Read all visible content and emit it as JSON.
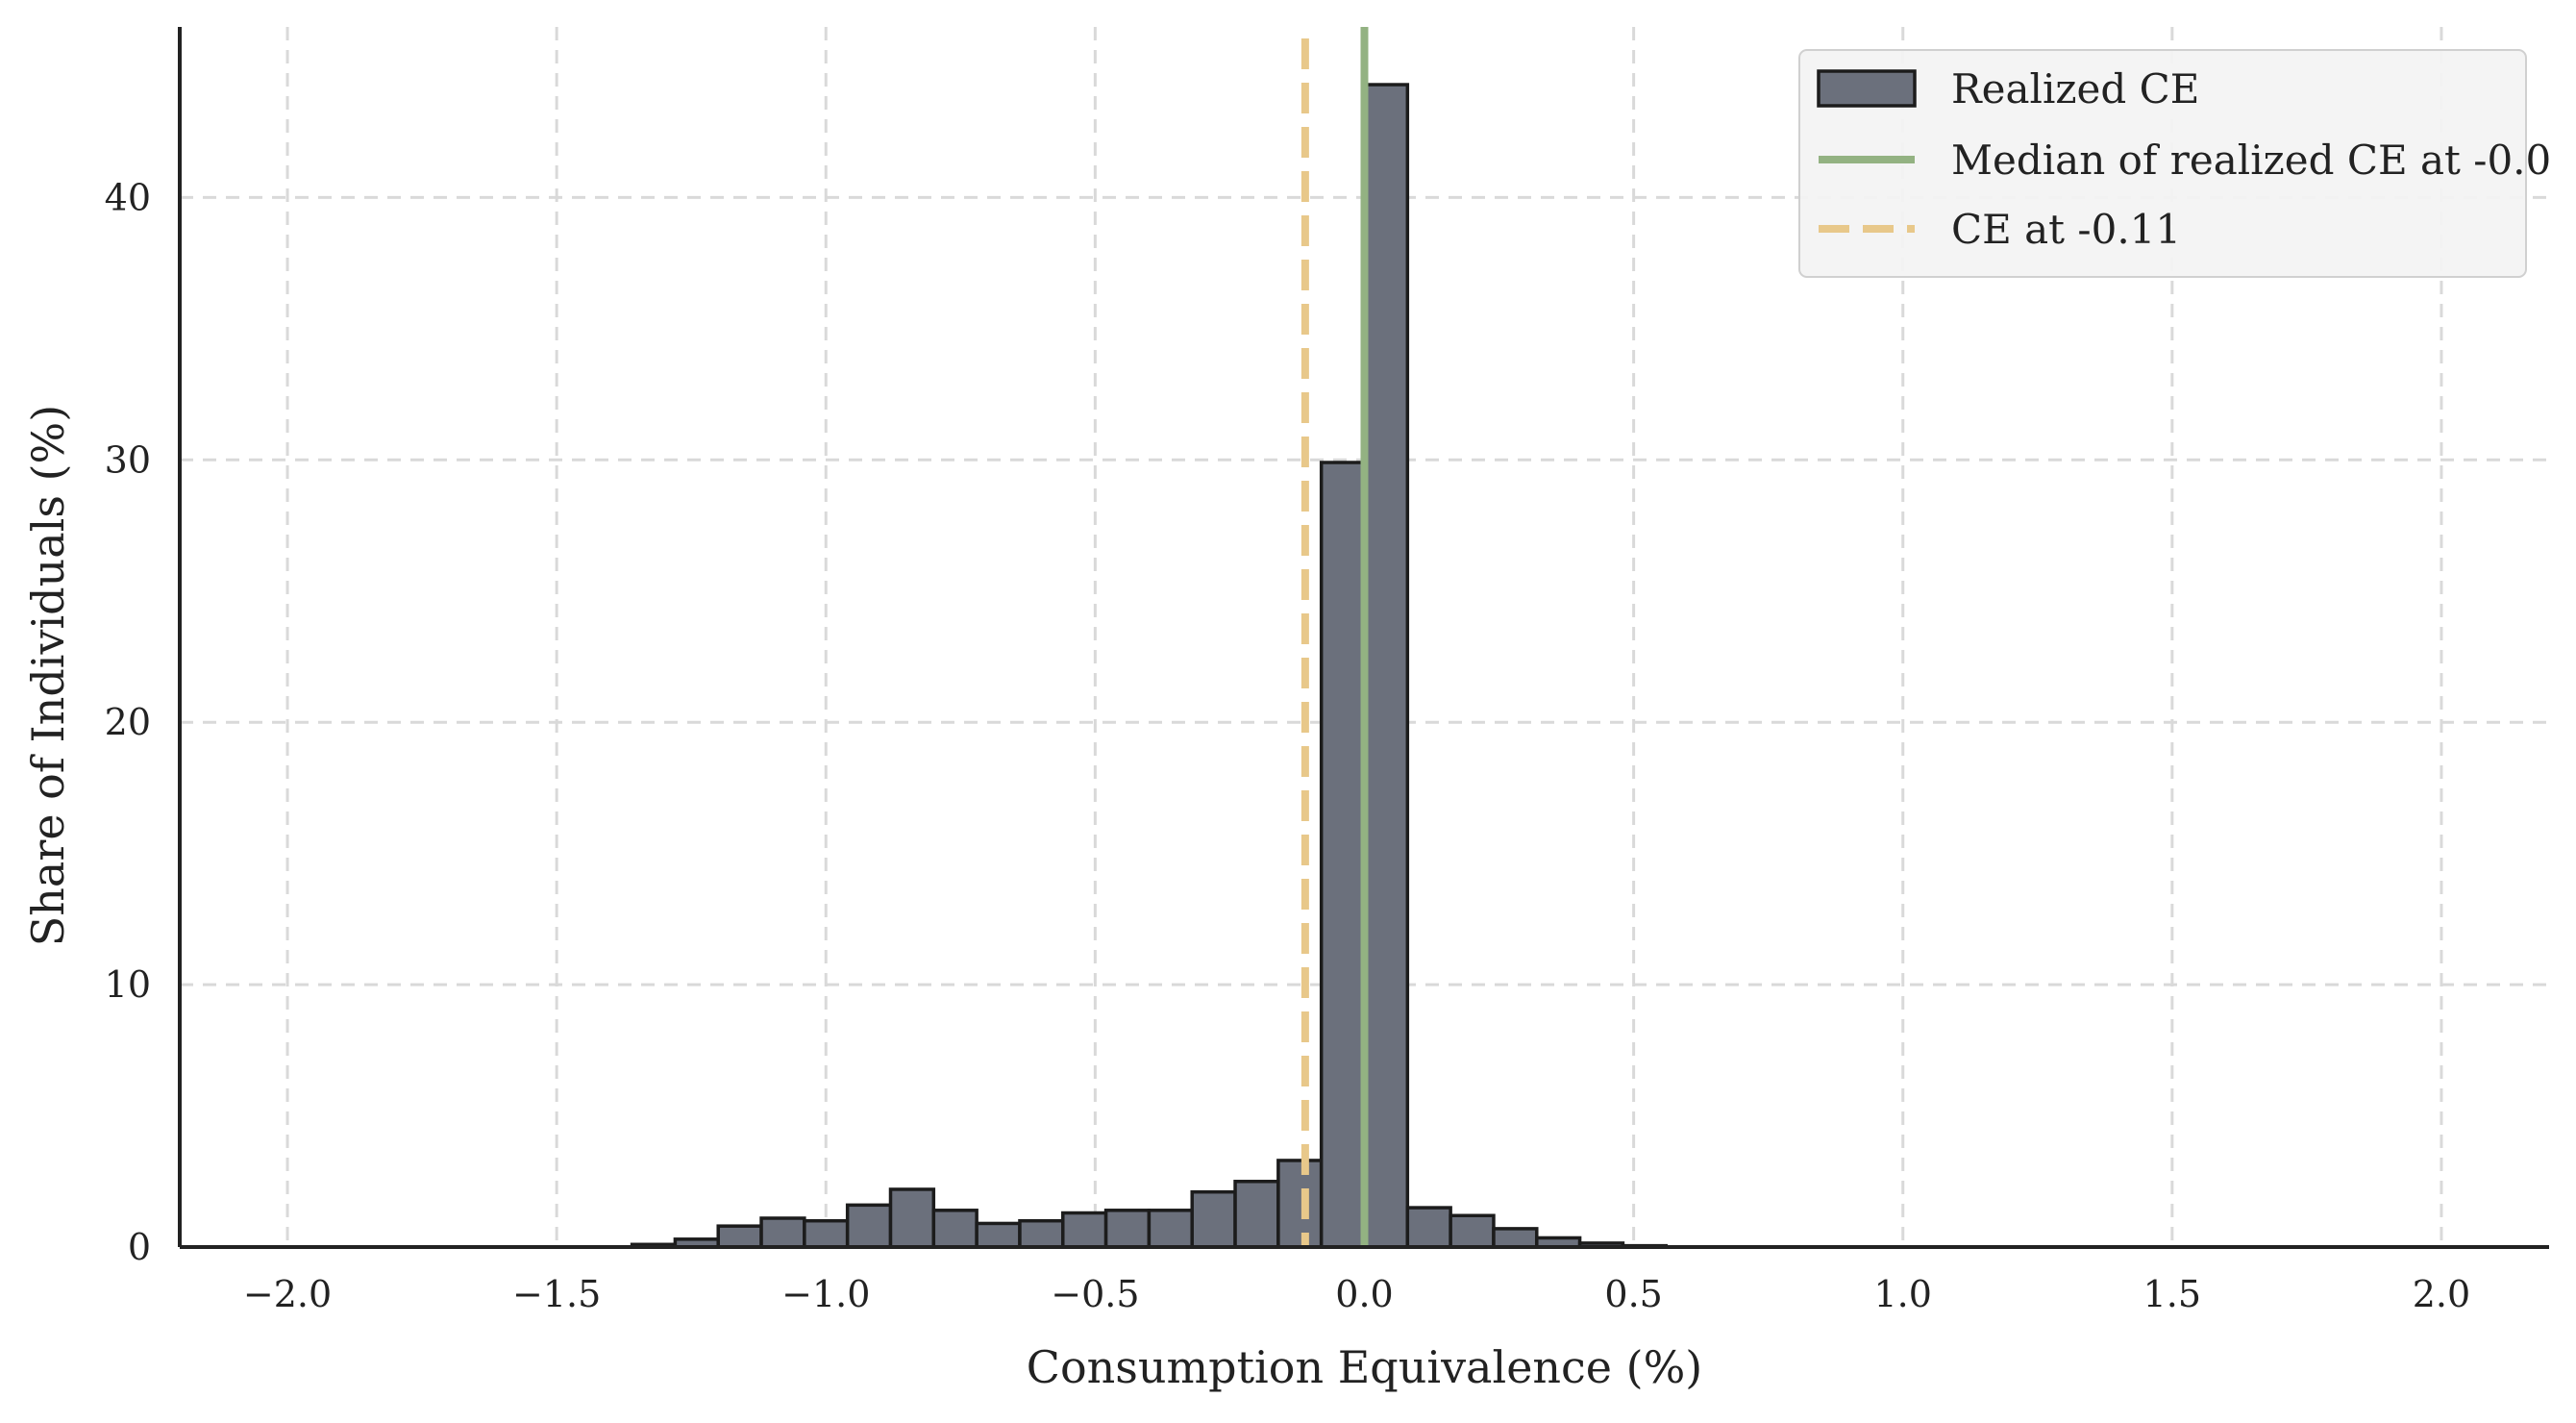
{
  "chart_data": {
    "type": "bar",
    "xlabel": "Consumption Equivalence (%)",
    "ylabel": "Share of Individuals (%)",
    "xlim": [
      -2.2,
      2.2
    ],
    "ylim": [
      0,
      46.5
    ],
    "x_ticks": [
      -2.0,
      -1.5,
      -1.0,
      -0.5,
      0.0,
      0.5,
      1.0,
      1.5,
      2.0
    ],
    "x_tick_labels": [
      "−2.0",
      "−1.5",
      "−1.0",
      "−0.5",
      "0.0",
      "0.5",
      "1.0",
      "1.5",
      "2.0"
    ],
    "y_ticks": [
      0,
      10,
      20,
      30,
      40
    ],
    "y_tick_labels": [
      "0",
      "10",
      "20",
      "30",
      "40"
    ],
    "grid": true,
    "legend_position": "top-right",
    "colors": {
      "bar_fill": "#6b707c",
      "bar_edge": "#1c1c1c",
      "median_line": "#93b282",
      "ce_line": "#e8c88a",
      "grid": "#d9d9d9",
      "axis": "#222222"
    },
    "series": [
      {
        "name": "Realized CE",
        "type": "histogram",
        "bin_width": 0.08,
        "bins": [
          {
            "x0": -1.36,
            "x1": -1.28,
            "value": 0.1
          },
          {
            "x0": -1.28,
            "x1": -1.2,
            "value": 0.3
          },
          {
            "x0": -1.2,
            "x1": -1.12,
            "value": 0.8
          },
          {
            "x0": -1.12,
            "x1": -1.04,
            "value": 1.1
          },
          {
            "x0": -1.04,
            "x1": -0.96,
            "value": 1.0
          },
          {
            "x0": -0.96,
            "x1": -0.88,
            "value": 1.6
          },
          {
            "x0": -0.88,
            "x1": -0.8,
            "value": 2.2
          },
          {
            "x0": -0.8,
            "x1": -0.72,
            "value": 1.4
          },
          {
            "x0": -0.72,
            "x1": -0.64,
            "value": 0.9
          },
          {
            "x0": -0.64,
            "x1": -0.56,
            "value": 1.0
          },
          {
            "x0": -0.56,
            "x1": -0.48,
            "value": 1.3
          },
          {
            "x0": -0.48,
            "x1": -0.4,
            "value": 1.4
          },
          {
            "x0": -0.4,
            "x1": -0.32,
            "value": 1.4
          },
          {
            "x0": -0.32,
            "x1": -0.24,
            "value": 2.1
          },
          {
            "x0": -0.24,
            "x1": -0.16,
            "value": 2.5
          },
          {
            "x0": -0.16,
            "x1": -0.08,
            "value": 3.3
          },
          {
            "x0": -0.08,
            "x1": 0.0,
            "value": 29.9
          },
          {
            "x0": 0.0,
            "x1": 0.08,
            "value": 44.3
          },
          {
            "x0": 0.08,
            "x1": 0.16,
            "value": 1.5
          },
          {
            "x0": 0.16,
            "x1": 0.24,
            "value": 1.2
          },
          {
            "x0": 0.24,
            "x1": 0.32,
            "value": 0.7
          },
          {
            "x0": 0.32,
            "x1": 0.4,
            "value": 0.35
          },
          {
            "x0": 0.4,
            "x1": 0.48,
            "value": 0.15
          },
          {
            "x0": 0.48,
            "x1": 0.56,
            "value": 0.05
          }
        ]
      },
      {
        "name": "Median of realized CE at -0.0",
        "type": "vline",
        "x": 0.0
      },
      {
        "name": "CE at -0.11",
        "type": "vline",
        "x": -0.11,
        "style": "dashed"
      }
    ]
  }
}
